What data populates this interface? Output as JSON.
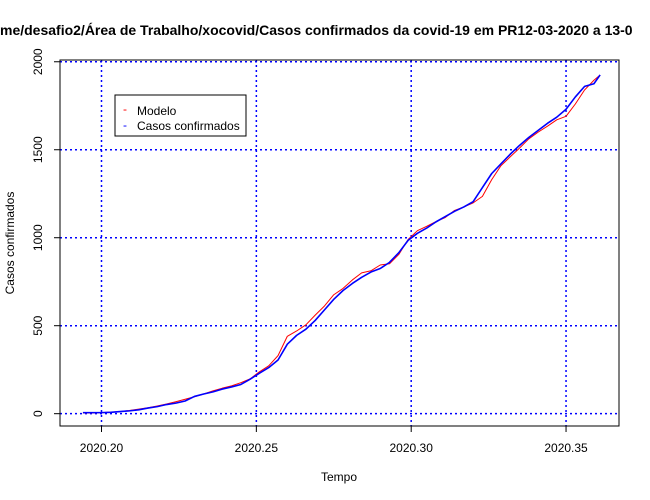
{
  "chart_data": {
    "type": "line",
    "title": "me/desafio2/Área de Trabalho/xocovid/Casos confirmados da covid-19 em PR12-03-2020 a 13-0",
    "xlabel": "Tempo",
    "ylabel": "Casos confirmados",
    "xlim": [
      2020.1866,
      2020.3671
    ],
    "ylim": [
      -70,
      2010
    ],
    "xticks": [
      2020.2,
      2020.25,
      2020.3,
      2020.35
    ],
    "xtick_labels": [
      "2020.20",
      "2020.25",
      "2020.30",
      "2020.35"
    ],
    "yticks": [
      0,
      500,
      1000,
      1500,
      2000
    ],
    "ytick_labels": [
      "0",
      "500",
      "1000",
      "1500",
      "2000"
    ],
    "grid": true,
    "grid_color": "#0000ff",
    "legend_position": "top-left",
    "legend": [
      {
        "label": "Modelo",
        "color": "#ff0000"
      },
      {
        "label": "Casos confirmados",
        "color": "#0000ff"
      }
    ],
    "series": [
      {
        "name": "Modelo",
        "color": "#ff0000",
        "x": [
          2020.194,
          2020.197,
          2020.2,
          2020.203,
          2020.206,
          2020.209,
          2020.212,
          2020.215,
          2020.218,
          2020.221,
          2020.224,
          2020.227,
          2020.23,
          2020.233,
          2020.236,
          2020.239,
          2020.242,
          2020.245,
          2020.248,
          2020.251,
          2020.254,
          2020.257,
          2020.26,
          2020.263,
          2020.266,
          2020.269,
          2020.272,
          2020.275,
          2020.278,
          2020.281,
          2020.284,
          2020.287,
          2020.29,
          2020.293,
          2020.296,
          2020.299,
          2020.302,
          2020.305,
          2020.308,
          2020.311,
          2020.314,
          2020.317,
          2020.32,
          2020.323,
          2020.326,
          2020.329,
          2020.332,
          2020.335,
          2020.338,
          2020.341,
          2020.344,
          2020.347,
          2020.35,
          2020.353,
          2020.356,
          2020.359,
          2020.361
        ],
        "y": [
          4,
          4,
          6,
          9,
          12,
          18,
          26,
          34,
          44,
          55,
          68,
          82,
          96,
          112,
          130,
          145,
          158,
          176,
          198,
          238,
          272,
          330,
          440,
          470,
          505,
          560,
          612,
          676,
          712,
          760,
          800,
          812,
          845,
          852,
          905,
          990,
          1040,
          1065,
          1092,
          1115,
          1155,
          1175,
          1198,
          1235,
          1330,
          1410,
          1460,
          1510,
          1562,
          1600,
          1634,
          1670,
          1690,
          1760,
          1840,
          1895,
          1925
        ]
      },
      {
        "name": "Casos confirmados",
        "color": "#0000ff",
        "x": [
          2020.194,
          2020.197,
          2020.2,
          2020.203,
          2020.206,
          2020.209,
          2020.212,
          2020.215,
          2020.218,
          2020.221,
          2020.224,
          2020.227,
          2020.23,
          2020.233,
          2020.236,
          2020.239,
          2020.242,
          2020.245,
          2020.248,
          2020.251,
          2020.254,
          2020.257,
          2020.26,
          2020.263,
          2020.266,
          2020.269,
          2020.272,
          2020.275,
          2020.278,
          2020.281,
          2020.284,
          2020.287,
          2020.29,
          2020.293,
          2020.296,
          2020.299,
          2020.302,
          2020.305,
          2020.308,
          2020.311,
          2020.314,
          2020.317,
          2020.32,
          2020.323,
          2020.326,
          2020.329,
          2020.332,
          2020.335,
          2020.338,
          2020.341,
          2020.344,
          2020.347,
          2020.35,
          2020.353,
          2020.356,
          2020.359,
          2020.361
        ],
        "y": [
          6,
          6,
          6,
          8,
          12,
          16,
          22,
          32,
          40,
          52,
          60,
          72,
          98,
          112,
          124,
          140,
          152,
          166,
          196,
          230,
          262,
          305,
          395,
          445,
          480,
          530,
          590,
          650,
          700,
          740,
          775,
          805,
          825,
          860,
          915,
          985,
          1025,
          1055,
          1090,
          1120,
          1150,
          1175,
          1205,
          1285,
          1365,
          1420,
          1475,
          1525,
          1570,
          1610,
          1650,
          1685,
          1730,
          1800,
          1860,
          1875,
          1925
        ]
      }
    ]
  }
}
